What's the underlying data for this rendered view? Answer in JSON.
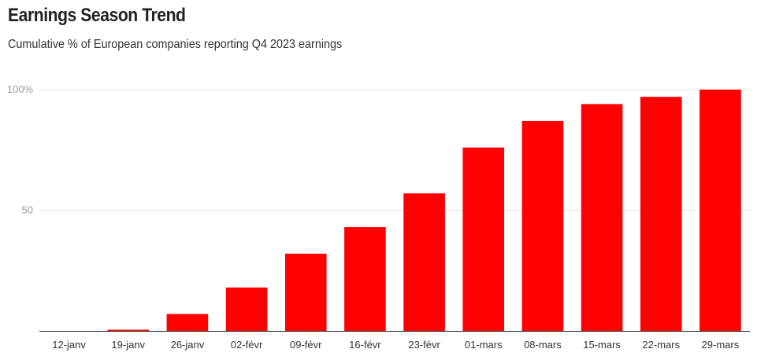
{
  "header": {
    "title": "Earnings Season Trend",
    "subtitle": "Cumulative % of European companies reporting Q4 2023 earnings"
  },
  "colors": {
    "bar": "#ff0000",
    "grid": "#e6e6e6",
    "axis": "#333333"
  },
  "chart_data": {
    "type": "bar",
    "title": "Earnings Season Trend",
    "subtitle": "Cumulative % of European companies reporting Q4 2023 earnings",
    "categories": [
      "12-janv",
      "19-janv",
      "26-janv",
      "02-févr",
      "09-févr",
      "16-févr",
      "23-févr",
      "01-mars",
      "08-mars",
      "15-mars",
      "22-mars",
      "29-mars"
    ],
    "values": [
      0,
      0.5,
      7,
      18,
      32,
      43,
      57,
      76,
      87,
      94,
      97,
      100
    ],
    "ylim": [
      0,
      100
    ],
    "yticks": [
      50,
      100
    ],
    "ytick_labels": [
      "50",
      "100%"
    ],
    "grid": true,
    "legend": "none"
  }
}
